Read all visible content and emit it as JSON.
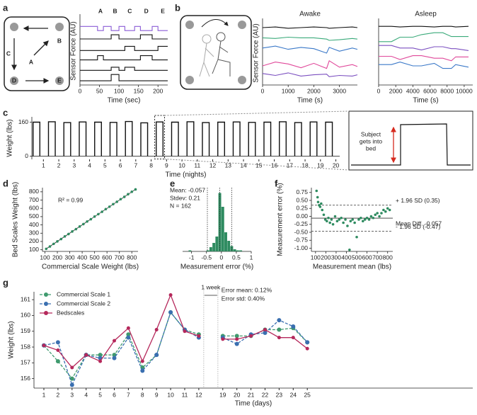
{
  "chart_data": [
    {
      "type": "line",
      "panel": "a",
      "diagram_labels": [
        "A",
        "B",
        "C",
        "D",
        "E"
      ],
      "events": [
        "A",
        "B",
        "C",
        "D",
        "E"
      ],
      "xlabel": "Time (sec)",
      "ylabel": "Sensor Force (AU)",
      "xlim": [
        0,
        225
      ],
      "xticks": [
        0,
        50,
        100,
        150,
        200
      ],
      "ylim": [
        0,
        6.5
      ],
      "x": [
        0,
        45,
        45,
        60,
        60,
        80,
        80,
        100,
        100,
        115,
        115,
        140,
        140,
        155,
        155,
        185,
        185,
        200,
        200,
        225
      ],
      "series": [
        {
          "color": "#8a5cd6",
          "values": [
            5.6,
            5.6,
            5.2,
            5.2,
            5.6,
            5.6,
            5.2,
            5.2,
            5.6,
            5.6,
            5.2,
            5.2,
            5.6,
            5.6,
            5.2,
            5.2,
            5.6,
            5.6,
            5.2,
            5.2
          ]
        },
        {
          "color": "#111111",
          "values": [
            4.4,
            4.4,
            4.4,
            4.4,
            4.4,
            4.4,
            4.8,
            4.8,
            4.4,
            4.4,
            4.4,
            4.4,
            4.4,
            4.4,
            4.8,
            4.8,
            4.4,
            4.4,
            4.4,
            4.4
          ]
        },
        {
          "color": "#111111",
          "values": [
            3.3,
            3.3,
            3.3,
            3.3,
            3.3,
            3.3,
            3.3,
            3.3,
            3.3,
            3.3,
            3.7,
            3.7,
            3.3,
            3.3,
            3.3,
            3.3,
            3.3,
            3.3,
            3.7,
            3.7
          ]
        },
        {
          "color": "#111111",
          "values": [
            2.4,
            2.4,
            2.8,
            2.8,
            2.4,
            2.4,
            2.4,
            2.4,
            2.4,
            2.4,
            2.4,
            2.4,
            2.4,
            2.4,
            2.8,
            2.8,
            2.4,
            2.4,
            2.4,
            2.4
          ]
        },
        {
          "color": "#111111",
          "values": [
            1.4,
            1.4,
            1.4,
            1.4,
            1.4,
            1.4,
            1.7,
            1.7,
            1.4,
            1.4,
            1.7,
            1.7,
            1.4,
            1.4,
            1.4,
            1.4,
            1.4,
            1.4,
            1.4,
            1.4
          ]
        },
        {
          "color": "#111111",
          "values": [
            0.4,
            0.4,
            0.4,
            0.4,
            0.4,
            0.4,
            1.0,
            1.0,
            0.4,
            0.4,
            0.4,
            0.4,
            0.4,
            0.4,
            0.4,
            0.4,
            0.4,
            0.4,
            0.4,
            0.4
          ]
        }
      ]
    },
    {
      "type": "line",
      "panel": "b",
      "title": "Awake",
      "xlabel": "Time (s)",
      "ylabel": "Sensor Force (AU)",
      "xlim": [
        0,
        3700
      ],
      "xticks": [
        0,
        1000,
        2000,
        3000
      ],
      "ylim": [
        0,
        10
      ],
      "x": [
        0,
        500,
        1000,
        1500,
        2000,
        2500,
        2600,
        3000,
        3500,
        3700
      ],
      "series": [
        {
          "color": "#111111",
          "values": [
            9.0,
            9.1,
            8.9,
            9.0,
            9.1,
            9.0,
            8.9,
            9.0,
            9.1,
            9.0
          ]
        },
        {
          "color": "#3aaa7a",
          "values": [
            7.4,
            7.3,
            7.5,
            7.4,
            7.4,
            7.2,
            7.0,
            7.1,
            7.3,
            7.2
          ]
        },
        {
          "color": "#3a78c8",
          "values": [
            5.8,
            6.1,
            5.6,
            5.9,
            5.7,
            5.0,
            5.9,
            5.3,
            5.8,
            5.6
          ]
        },
        {
          "color": "#e0489a",
          "values": [
            3.0,
            3.6,
            3.3,
            2.7,
            3.4,
            2.6,
            3.8,
            2.8,
            3.2,
            2.9
          ]
        },
        {
          "color": "#7b4fc0",
          "values": [
            1.8,
            1.5,
            1.9,
            1.4,
            1.6,
            1.7,
            1.3,
            1.5,
            1.4,
            1.6
          ]
        }
      ]
    },
    {
      "type": "line",
      "title": "Asleep",
      "xlabel": "Time (s)",
      "xlim": [
        0,
        11000
      ],
      "xticks": [
        0,
        2000,
        4000,
        6000,
        8000,
        10000
      ],
      "ylim": [
        0,
        10
      ],
      "x": [
        0,
        1500,
        2500,
        4000,
        5000,
        6500,
        7500,
        8500,
        9000,
        10500
      ],
      "series": [
        {
          "color": "#111111",
          "values": [
            9.2,
            9.2,
            9.1,
            9.2,
            9.2,
            9.1,
            9.2,
            9.2,
            9.1,
            9.2
          ]
        },
        {
          "color": "#3aaa7a",
          "values": [
            6.8,
            6.8,
            7.5,
            7.5,
            7.9,
            8.2,
            8.2,
            7.6,
            7.6,
            7.6
          ]
        },
        {
          "color": "#7b4fc0",
          "values": [
            6.2,
            6.2,
            5.8,
            5.8,
            5.5,
            6.0,
            6.0,
            5.7,
            5.7,
            5.4
          ]
        },
        {
          "color": "#e0489a",
          "values": [
            4.5,
            4.5,
            4.0,
            4.6,
            4.6,
            4.2,
            4.2,
            3.8,
            4.4,
            4.4
          ]
        },
        {
          "color": "#3a78c8",
          "values": [
            3.2,
            3.2,
            3.6,
            3.0,
            3.0,
            3.4,
            2.6,
            2.6,
            3.2,
            2.8
          ]
        }
      ]
    },
    {
      "type": "pulse",
      "panel": "c",
      "xlabel": "Time (nights)",
      "ylabel": "Weight (lbs)",
      "ylim": [
        -15,
        185
      ],
      "yticks": [
        0,
        160
      ],
      "color": "#111111",
      "categories": [
        "1",
        "2",
        "3",
        "4",
        "5",
        "6",
        "7",
        "8",
        "9",
        "10",
        "11",
        "12",
        "13",
        "14",
        "15",
        "16",
        "17",
        "18",
        "19",
        "20"
      ],
      "values": [
        160,
        162,
        158,
        161,
        160,
        159,
        163,
        157,
        161,
        160,
        162,
        158,
        160,
        161,
        159,
        160,
        162,
        158,
        161,
        160
      ],
      "inset_text": [
        "Subject",
        "gets into",
        "bed"
      ]
    },
    {
      "type": "scatter",
      "panel": "d",
      "xlabel": "Commercial Scale Weight (lbs)",
      "ylabel": "Bed Scales Weight (lbs)",
      "annotation": "R² = 0.99",
      "color": "#2e8b60",
      "xlim": [
        80,
        850
      ],
      "ylim": [
        80,
        850
      ],
      "xticks": [
        100,
        200,
        300,
        400,
        500,
        600,
        700,
        800
      ],
      "yticks": [
        100,
        200,
        300,
        400,
        500,
        600,
        700,
        800
      ],
      "x": [
        110,
        140,
        170,
        200,
        230,
        260,
        290,
        320,
        350,
        380,
        410,
        440,
        470,
        500,
        530,
        560,
        590,
        620,
        650,
        680,
        710,
        740,
        770,
        800,
        830
      ],
      "values": [
        111,
        139,
        171,
        201,
        229,
        261,
        290,
        321,
        349,
        381,
        410,
        441,
        469,
        501,
        530,
        559,
        591,
        620,
        651,
        679,
        711,
        739,
        771,
        800,
        829
      ]
    },
    {
      "type": "histogram",
      "panel": "e",
      "xlabel": "Measurement error (%)",
      "annotations": [
        "Mean: -0.057",
        "Stdev: 0.21",
        "N = 162"
      ],
      "color": "#2e8b60",
      "xlim": [
        -1.3,
        1.0
      ],
      "xticks": [
        -1,
        -0.5,
        0,
        0.5,
        1
      ],
      "ylim": [
        0,
        60
      ],
      "vlines": [
        -0.47,
        -0.057,
        0.35
      ],
      "bins": [
        -1.1,
        -1.0,
        -0.9,
        -0.8,
        -0.7,
        -0.6,
        -0.5,
        -0.4,
        -0.3,
        -0.2,
        -0.1,
        0,
        0.1,
        0.2,
        0.3,
        0.4,
        0.5,
        0.6,
        0.7
      ],
      "values": [
        1,
        0,
        0,
        0,
        0,
        0,
        1,
        4,
        8,
        14,
        55,
        42,
        18,
        10,
        5,
        2,
        1,
        1
      ]
    },
    {
      "type": "scatter",
      "panel": "f",
      "xlabel": "Measurement mean (lbs)",
      "ylabel": "Measurement error (%)",
      "color": "#2e8b60",
      "xlim": [
        60,
        850
      ],
      "ylim": [
        -1.1,
        0.9
      ],
      "xticks": [
        100,
        200,
        300,
        400,
        500,
        600,
        700,
        800
      ],
      "yticks": [
        {
          "value": -1,
          "label": "-1.00"
        },
        -0.75,
        {
          "value": -0.5,
          "label": "-0.50"
        },
        -0.25,
        {
          "value": 0,
          "label": "0.00"
        },
        0.25,
        {
          "value": 0.5,
          "label": "0.50"
        },
        0.75
      ],
      "hlines": [
        {
          "value": 0.35,
          "label": "+ 1.96 SD (0.35)",
          "style": "dashed"
        },
        {
          "value": -0.057,
          "label": "Mean Diff. -0.057",
          "style": "solid"
        },
        {
          "value": -0.47,
          "label": "- 1.96 SD (-0.47)",
          "style": "dashed"
        }
      ],
      "x": [
        110,
        120,
        125,
        135,
        145,
        155,
        165,
        180,
        195,
        210,
        225,
        240,
        255,
        270,
        290,
        310,
        330,
        350,
        370,
        390,
        410,
        430,
        440,
        460,
        480,
        500,
        520,
        540,
        560,
        580,
        600,
        620,
        640,
        660,
        680,
        700,
        720,
        740,
        760,
        780,
        800,
        820
      ],
      "values": [
        0.8,
        0.6,
        0.45,
        0.35,
        0.3,
        0.4,
        0.2,
        0.05,
        -0.1,
        -0.15,
        -0.05,
        -0.2,
        -0.1,
        -0.25,
        0.0,
        -0.15,
        -0.1,
        -0.05,
        -0.2,
        -0.1,
        -0.3,
        -1.05,
        -0.15,
        -0.1,
        -0.2,
        -0.65,
        -0.1,
        -0.05,
        -0.15,
        -0.1,
        -0.05,
        -0.1,
        0.0,
        -0.05,
        0.05,
        0.1,
        0.0,
        0.1,
        0.2,
        0.15,
        0.25,
        0.2
      ]
    },
    {
      "type": "category_line",
      "panel": "g",
      "xlabel": "Time (days)",
      "ylabel": "Weight (lbs)",
      "legend": "upper left",
      "break_label": "1 week",
      "annotations": [
        "Error mean: 0.12%",
        "Error std: 0.40%"
      ],
      "ylim": [
        155.4,
        161.5
      ],
      "yticks": [
        156,
        157,
        158,
        159,
        160,
        161
      ],
      "categories": [
        "1",
        "2",
        "3",
        "4",
        "5",
        "6",
        "7",
        "8",
        "9",
        "10",
        "11",
        "12",
        "19",
        "20",
        "21",
        "22",
        "23",
        "24",
        "25"
      ],
      "series": [
        {
          "name": "Commercial Scale 1",
          "color": "#3f9a6e",
          "linestyle": "dashed",
          "values": [
            158.1,
            157.1,
            156.0,
            157.5,
            157.5,
            157.5,
            158.8,
            156.7,
            157.5,
            160.2,
            159.1,
            158.8,
            158.7,
            158.7,
            158.7,
            159.1,
            159.1,
            159.2,
            158.3
          ]
        },
        {
          "name": "Commercial Scale 2",
          "color": "#3a6fb0",
          "linestyle": "dashed",
          "values": [
            158.1,
            158.3,
            155.6,
            157.5,
            157.3,
            157.3,
            158.6,
            156.5,
            157.5,
            160.2,
            159.1,
            158.6,
            158.6,
            158.2,
            158.8,
            158.9,
            159.7,
            159.3,
            158.3
          ]
        },
        {
          "name": "Bedscales",
          "color": "#b5285b",
          "linestyle": "solid",
          "values": [
            158.1,
            157.8,
            156.7,
            157.5,
            157.1,
            158.4,
            159.2,
            157.1,
            159.1,
            161.3,
            159.0,
            158.7,
            158.5,
            158.5,
            158.7,
            159.1,
            158.6,
            158.6,
            157.9
          ]
        }
      ]
    }
  ]
}
